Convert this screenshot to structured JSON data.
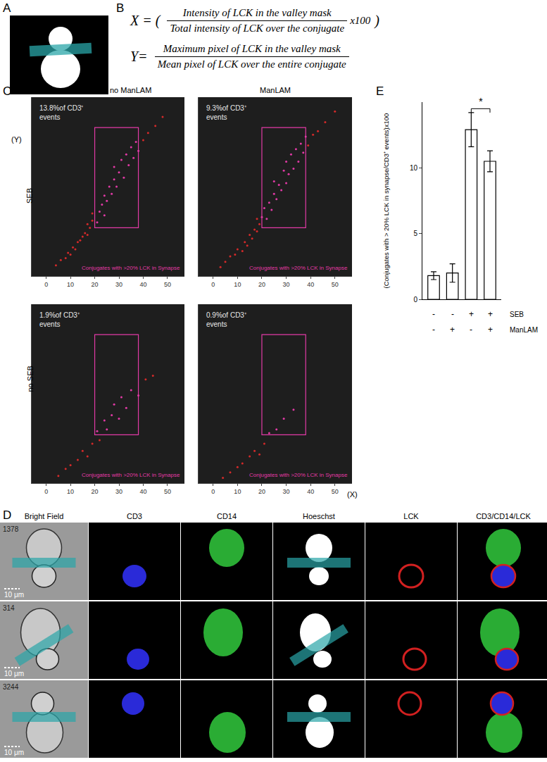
{
  "panel_labels": [
    "A",
    "B",
    "C",
    "D",
    "E"
  ],
  "formulas": [
    {
      "lhs": "X = (",
      "numerator": "Intensity of LCK in the valley mask",
      "denominator": "Total intensity of LCK over the conjugate",
      "factor": "x100",
      "rhs": ")"
    },
    {
      "lhs": "Y=",
      "numerator": "Maximum pixel of LCK in the valley mask",
      "denominator": "Mean pixel of LCK over the entire conjugate",
      "factor": "",
      "rhs": ""
    }
  ],
  "panel_C": {
    "x_label": "(X)",
    "y_label": "(Y)",
    "columns": [
      "no ManLAM",
      "ManLAM"
    ],
    "rows": [
      "SEB",
      "no SEB"
    ]
  },
  "chart_data": [
    {
      "type": "scatter",
      "row": 0,
      "column": 0,
      "note": [
        "13.8%of CD3⁺",
        "events"
      ],
      "gate_label": "Conjugates with >20% LCK in Synapse",
      "gate": {
        "x": [
          20,
          38
        ],
        "y": [
          2.7,
          8.3
        ],
        "color": "#e23aa6"
      },
      "color": "#d42a2a",
      "xlim": [
        -6,
        57
      ],
      "xticks": [
        0,
        10,
        20,
        30,
        40,
        50
      ],
      "ylim": [
        0,
        10
      ],
      "tick_labels": "x",
      "x": [
        4,
        6,
        8,
        9,
        10,
        11,
        12,
        13,
        14,
        15,
        16,
        17,
        17,
        18,
        19,
        19,
        21,
        22,
        23,
        24,
        24,
        25,
        26,
        27,
        28,
        28,
        29,
        30,
        31,
        32,
        33,
        34,
        35,
        36,
        37,
        38,
        40,
        42,
        45,
        48
      ],
      "y": [
        0.6,
        0.9,
        1.0,
        1.3,
        1.2,
        1.6,
        1.5,
        1.9,
        2.0,
        2.2,
        2.4,
        2.3,
        2.9,
        2.7,
        3.1,
        3.5,
        3.0,
        3.6,
        4.0,
        3.4,
        4.5,
        4.2,
        5.0,
        4.6,
        5.4,
        6.1,
        5.0,
        5.8,
        6.5,
        5.5,
        6.8,
        6.2,
        7.2,
        6.6,
        7.5,
        7.0,
        7.6,
        8.0,
        8.4,
        8.9
      ]
    },
    {
      "type": "scatter",
      "row": 0,
      "column": 1,
      "note": [
        "9.3%of CD3⁺",
        "events"
      ],
      "gate_label": "Conjugates with >20% LCK in Synapse",
      "gate": {
        "x": [
          20,
          38
        ],
        "y": [
          2.7,
          8.3
        ],
        "color": "#e23aa6"
      },
      "color": "#d42a2a",
      "xlim": [
        -6,
        57
      ],
      "xticks": [
        0,
        10,
        20,
        30,
        40,
        50
      ],
      "ylim": [
        0,
        10
      ],
      "tick_labels": "x",
      "x": [
        3,
        5,
        7,
        9,
        10,
        12,
        13,
        14,
        15,
        16,
        17,
        18,
        18,
        19,
        20,
        21,
        22,
        23,
        24,
        25,
        25,
        26,
        27,
        28,
        29,
        30,
        30,
        31,
        32,
        33,
        34,
        35,
        36,
        37,
        38,
        39,
        41,
        43,
        46,
        50
      ],
      "y": [
        0.5,
        0.8,
        1.1,
        1.2,
        1.5,
        1.4,
        1.9,
        1.7,
        2.3,
        2.1,
        2.6,
        2.5,
        3.2,
        2.9,
        3.3,
        3.8,
        3.2,
        4.1,
        3.7,
        4.6,
        5.3,
        4.3,
        5.1,
        4.8,
        5.9,
        5.2,
        6.4,
        5.7,
        6.8,
        6.0,
        7.1,
        6.4,
        7.4,
        6.9,
        7.8,
        7.3,
        7.9,
        8.1,
        8.6,
        9.2
      ]
    },
    {
      "type": "scatter",
      "row": 1,
      "column": 0,
      "note": [
        "1.9%of CD3⁺",
        "events"
      ],
      "gate_label": "Conjugates with >20% LCK in Synapse",
      "gate": {
        "x": [
          20,
          38
        ],
        "y": [
          2.7,
          8.3
        ],
        "color": "#e23aa6"
      },
      "color": "#d42a2a",
      "xlim": [
        -6,
        57
      ],
      "xticks": [
        0,
        10,
        20,
        30,
        40,
        50
      ],
      "ylim": [
        0,
        10
      ],
      "tick_labels": "x",
      "x": [
        5,
        8,
        10,
        13,
        15,
        17,
        19,
        21,
        22,
        24,
        25,
        27,
        28,
        30,
        31,
        33,
        35,
        38,
        41,
        44
      ],
      "y": [
        0.4,
        0.8,
        1.0,
        1.3,
        1.8,
        1.5,
        2.2,
        2.9,
        2.4,
        3.5,
        3.0,
        3.8,
        4.4,
        3.6,
        4.8,
        4.2,
        5.2,
        4.9,
        5.8,
        6.0
      ]
    },
    {
      "type": "scatter",
      "row": 1,
      "column": 1,
      "note": [
        "0.9%of CD3⁺",
        "events"
      ],
      "gate_label": "Conjugates with >20% LCK in Synapse",
      "gate": {
        "x": [
          20,
          38
        ],
        "y": [
          2.7,
          8.3
        ],
        "color": "#e23aa6"
      },
      "color": "#d42a2a",
      "xlim": [
        -6,
        57
      ],
      "xticks": [
        0,
        10,
        20,
        30,
        40,
        50
      ],
      "ylim": [
        0,
        10
      ],
      "tick_labels": "x",
      "x": [
        4,
        7,
        10,
        12,
        15,
        17,
        19,
        21,
        23,
        26,
        29,
        33
      ],
      "y": [
        0.3,
        0.6,
        0.9,
        1.1,
        1.5,
        1.8,
        1.6,
        2.2,
        2.8,
        3.0,
        3.6,
        4.1
      ]
    },
    {
      "type": "bar",
      "categories": [
        null,
        null,
        null,
        null
      ],
      "values": [
        1.8,
        2.0,
        12.9,
        10.5
      ],
      "errors": [
        0.3,
        0.7,
        1.3,
        0.8
      ],
      "color": "#ffffff",
      "ylim": [
        0,
        15
      ],
      "yticks": [
        0,
        5,
        10
      ],
      "y_label": "(Conjugates with > 20% LCK in synapse/CD3⁺ events)x100",
      "condition_rows": [
        {
          "label": "SEB",
          "values": [
            "-",
            "-",
            "+",
            "+"
          ]
        },
        {
          "label": "ManLAM",
          "values": [
            "-",
            "+",
            "-",
            "+"
          ]
        }
      ],
      "significance": {
        "between": [
          2,
          3
        ],
        "label": "*"
      }
    }
  ],
  "panel_D": {
    "columns": [
      "Bright Field",
      "CD3",
      "CD14",
      "Hoeschst",
      "LCK",
      "CD3/CD14/LCK"
    ],
    "rows": [
      "1378",
      "314",
      "3244"
    ],
    "scale_bar": "10 μm"
  }
}
